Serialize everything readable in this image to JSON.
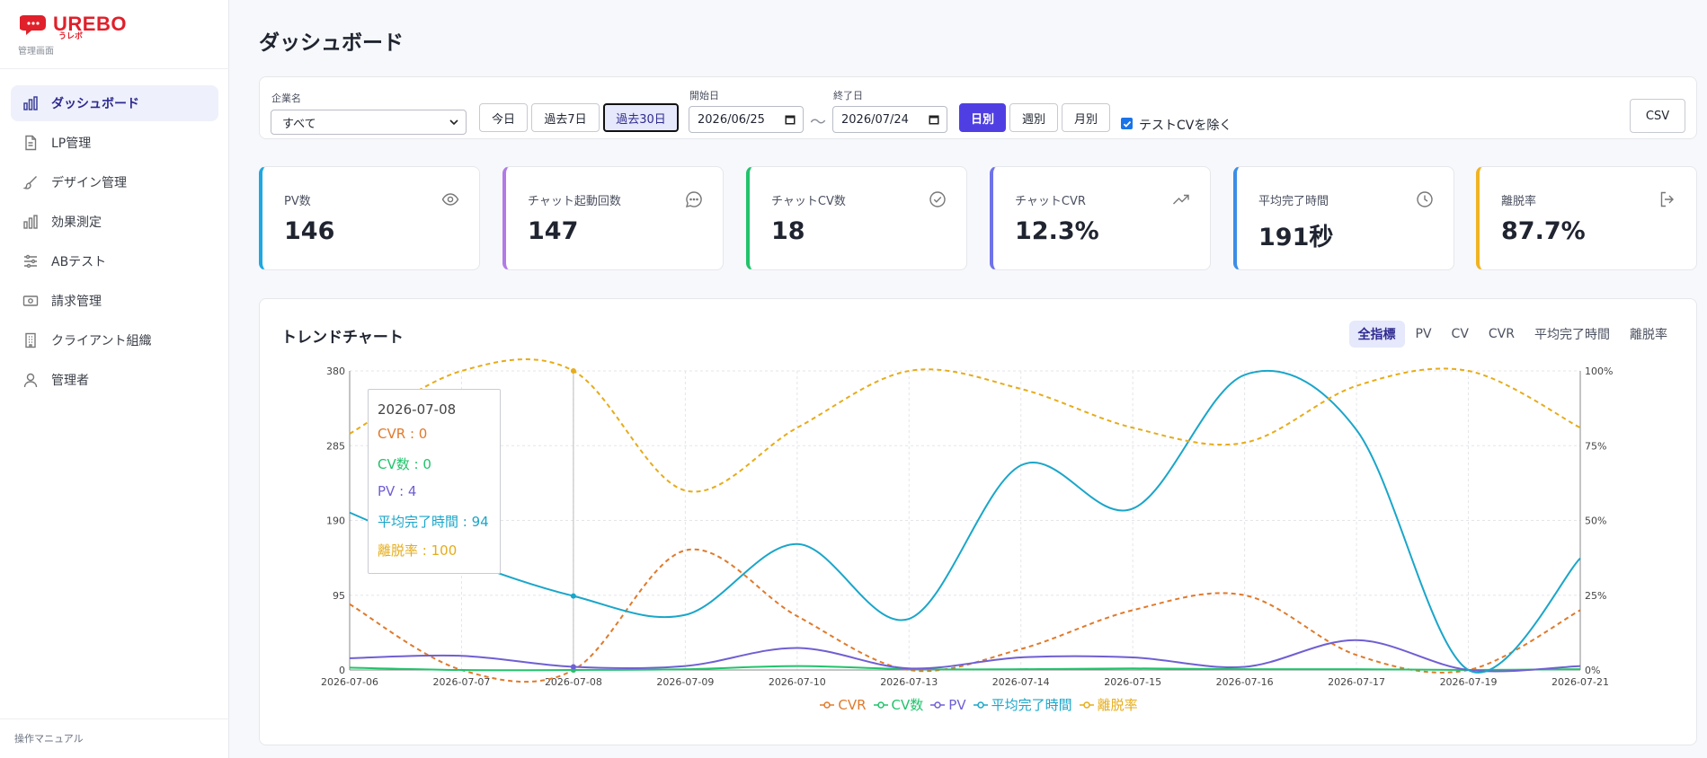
{
  "brand": {
    "name": "UREBO",
    "sub": "うレボ",
    "caption": "管理画面",
    "accent": "#e0202a"
  },
  "sidebar": {
    "items": [
      {
        "label": "ダッシュボード",
        "icon": "bar-chart-icon",
        "active": true
      },
      {
        "label": "LP管理",
        "icon": "document-icon"
      },
      {
        "label": "デザイン管理",
        "icon": "brush-icon"
      },
      {
        "label": "効果測定",
        "icon": "bar-chart-icon"
      },
      {
        "label": "ABテスト",
        "icon": "sliders-icon"
      },
      {
        "label": "請求管理",
        "icon": "banknote-icon"
      },
      {
        "label": "クライアント組織",
        "icon": "building-icon"
      },
      {
        "label": "管理者",
        "icon": "user-icon"
      }
    ],
    "manual": "操作マニュアル"
  },
  "page": {
    "title": "ダッシュボード"
  },
  "filters": {
    "company_label": "企業名",
    "company_value": "すべて",
    "quick_ranges": [
      "今日",
      "過去7日",
      "過去30日"
    ],
    "quick_selected": "過去30日",
    "start_label": "開始日",
    "start_value": "2026/06/25",
    "range_sep": "〜",
    "end_label": "終了日",
    "end_value": "2026/07/24",
    "granularity": [
      "日別",
      "週別",
      "月別"
    ],
    "granularity_selected": "日別",
    "exclude_test_label": "テストCVを除く",
    "exclude_test_checked": true,
    "csv_label": "CSV"
  },
  "kpis": [
    {
      "label": "PV数",
      "value": "146",
      "icon": "eye-icon",
      "color": "#1ea7e1"
    },
    {
      "label": "チャット起動回数",
      "value": "147",
      "icon": "chat-icon",
      "color": "#b07be6"
    },
    {
      "label": "チャットCV数",
      "value": "18",
      "icon": "check-circle-icon",
      "color": "#21c36b"
    },
    {
      "label": "チャットCVR",
      "value": "12.3%",
      "icon": "trend-up-icon",
      "color": "#6f73e8"
    },
    {
      "label": "平均完了時間",
      "value": "191秒",
      "icon": "clock-icon",
      "color": "#3a8ee6"
    },
    {
      "label": "離脱率",
      "value": "87.7%",
      "icon": "exit-icon",
      "color": "#f0b323"
    }
  ],
  "trend": {
    "title": "トレンドチャート",
    "tabs": [
      "全指標",
      "PV",
      "CV",
      "CVR",
      "平均完了時間",
      "離脱率"
    ],
    "active_tab": "全指標",
    "tooltip": {
      "date": "2026-07-08",
      "rows": [
        {
          "label": "CVR",
          "value": "0",
          "color": "#e07a2b"
        },
        {
          "label": "CV数",
          "value": "0",
          "color": "#21c36b"
        },
        {
          "label": "PV",
          "value": "4",
          "color": "#6f5fd3"
        },
        {
          "label": "平均完了時間",
          "value": "94",
          "color": "#1aa6c9"
        },
        {
          "label": "離脱率",
          "value": "100",
          "color": "#e6ac19"
        }
      ]
    }
  },
  "chart_data": {
    "type": "line",
    "x": [
      "2026-07-06",
      "2026-07-07",
      "2026-07-08",
      "2026-07-09",
      "2026-07-10",
      "2026-07-13",
      "2026-07-14",
      "2026-07-15",
      "2026-07-16",
      "2026-07-17",
      "2026-07-19",
      "2026-07-21"
    ],
    "y_left": {
      "ticks": [
        0,
        95,
        190,
        285,
        380
      ],
      "ylim": [
        0,
        380
      ]
    },
    "y_right": {
      "ticks": [
        "0%",
        "25%",
        "50%",
        "75%",
        "100%"
      ],
      "ylim": [
        0,
        100
      ]
    },
    "grid": true,
    "legend_position": "bottom",
    "series": [
      {
        "name": "CVR",
        "axis": "right",
        "style": "dashed",
        "color": "#e07a2b",
        "values": [
          22,
          0,
          0,
          40,
          18,
          0,
          7,
          20,
          25,
          5,
          0,
          20
        ]
      },
      {
        "name": "CV数",
        "axis": "left",
        "style": "solid",
        "color": "#21c36b",
        "values": [
          3,
          0,
          0,
          1,
          5,
          1,
          1,
          2,
          1,
          1,
          0,
          1
        ]
      },
      {
        "name": "PV",
        "axis": "left",
        "style": "solid",
        "color": "#6f5fd3",
        "values": [
          15,
          18,
          4,
          5,
          28,
          2,
          16,
          16,
          4,
          38,
          0,
          5
        ]
      },
      {
        "name": "平均完了時間",
        "axis": "left",
        "style": "solid",
        "color": "#1aa6c9",
        "values": [
          200,
          140,
          94,
          70,
          160,
          65,
          260,
          205,
          375,
          305,
          0,
          142
        ]
      },
      {
        "name": "離脱率",
        "axis": "right",
        "style": "dashed",
        "color": "#e6ac19",
        "values": [
          79,
          100,
          100,
          60,
          81,
          100,
          94,
          81,
          76,
          95,
          100,
          81
        ]
      }
    ],
    "highlight_x": "2026-07-08"
  }
}
